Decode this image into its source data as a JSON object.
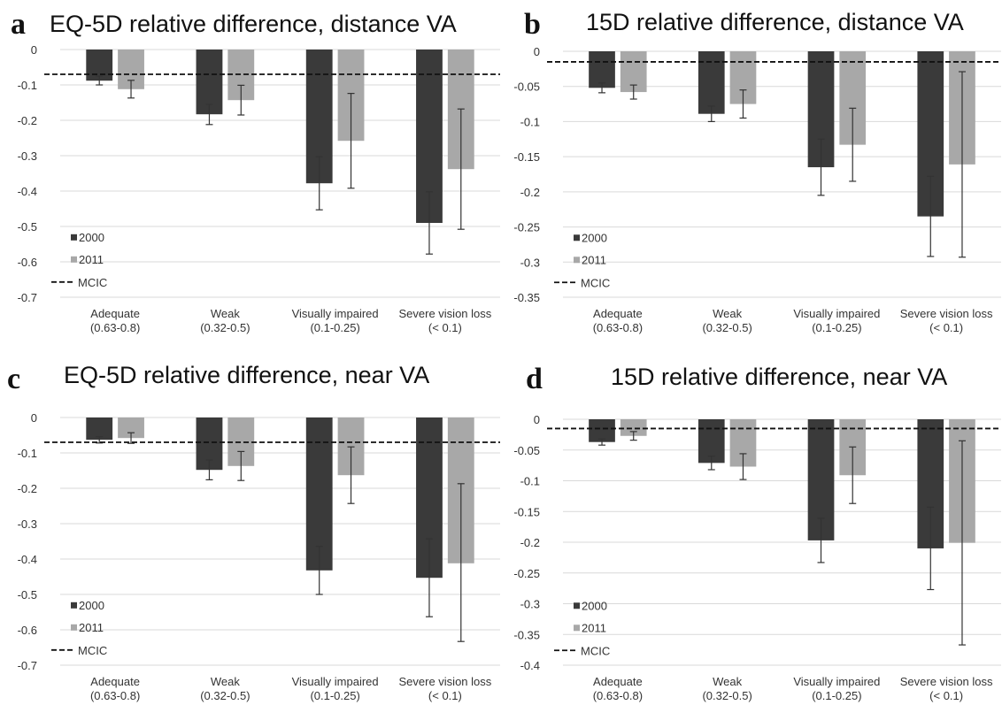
{
  "colors": {
    "2000": "#3a3a3a",
    "2011": "#a8a8a8",
    "grid": "#d9d9d9",
    "errorbar": "#333333",
    "mcic": "#111111"
  },
  "legend": {
    "entries": [
      "2000",
      "2011",
      "MCIC"
    ],
    "position": "bottom-left"
  },
  "categories": [
    {
      "name": "Adequate",
      "range": "(0.63-0.8)"
    },
    {
      "name": "Weak",
      "range": "(0.32-0.5)"
    },
    {
      "name": "Visually impaired",
      "range": "(0.1-0.25)"
    },
    {
      "name": "Severe vision loss",
      "range": "(< 0.1)"
    }
  ],
  "chart_data": [
    {
      "letter": "a",
      "title": "EQ-5D relative difference, distance VA",
      "type": "bar",
      "ylim": [
        -0.7,
        0
      ],
      "yticks": [
        "0",
        "-0.1",
        "-0.2",
        "-0.3",
        "-0.4",
        "-0.5",
        "-0.6",
        "-0.7"
      ],
      "yvals": [
        0,
        -0.1,
        -0.2,
        -0.3,
        -0.4,
        -0.5,
        -0.6,
        -0.7
      ],
      "mcic": -0.07,
      "series": [
        {
          "name": "2000",
          "values": [
            -0.088,
            -0.183,
            -0.378,
            -0.49
          ],
          "err_low": [
            -0.1,
            -0.212,
            -0.453,
            -0.578
          ],
          "err_high": [
            -0.075,
            -0.155,
            -0.303,
            -0.402
          ]
        },
        {
          "name": "2011",
          "values": [
            -0.112,
            -0.143,
            -0.258,
            -0.338
          ],
          "err_low": [
            -0.137,
            -0.185,
            -0.392,
            -0.508
          ],
          "err_high": [
            -0.087,
            -0.101,
            -0.124,
            -0.168
          ]
        }
      ]
    },
    {
      "letter": "b",
      "title": "15D relative difference, distance VA",
      "type": "bar",
      "ylim": [
        -0.35,
        0
      ],
      "yticks": [
        "0",
        "-0.05",
        "-0.1",
        "-0.15",
        "-0.2",
        "-0.25",
        "-0.3",
        "-0.35"
      ],
      "yvals": [
        0,
        -0.05,
        -0.1,
        -0.15,
        -0.2,
        -0.25,
        -0.3,
        -0.35
      ],
      "mcic": -0.015,
      "series": [
        {
          "name": "2000",
          "values": [
            -0.052,
            -0.089,
            -0.165,
            -0.235
          ],
          "err_low": [
            -0.059,
            -0.1,
            -0.205,
            -0.292
          ],
          "err_high": [
            -0.045,
            -0.078,
            -0.125,
            -0.178
          ]
        },
        {
          "name": "2011",
          "values": [
            -0.058,
            -0.075,
            -0.133,
            -0.161
          ],
          "err_low": [
            -0.068,
            -0.095,
            -0.185,
            -0.293
          ],
          "err_high": [
            -0.048,
            -0.055,
            -0.081,
            -0.029
          ]
        }
      ]
    },
    {
      "letter": "c",
      "title": "EQ-5D relative difference, near VA",
      "type": "bar",
      "ylim": [
        -0.7,
        0
      ],
      "yticks": [
        "0",
        "-0.1",
        "-0.2",
        "-0.3",
        "-0.4",
        "-0.5",
        "-0.6",
        "-0.7"
      ],
      "yvals": [
        0,
        -0.1,
        -0.2,
        -0.3,
        -0.4,
        -0.5,
        -0.6,
        -0.7
      ],
      "mcic": -0.07,
      "series": [
        {
          "name": "2000",
          "values": [
            -0.063,
            -0.148,
            -0.432,
            -0.453
          ],
          "err_low": [
            -0.072,
            -0.176,
            -0.5,
            -0.563
          ],
          "err_high": [
            -0.054,
            -0.12,
            -0.364,
            -0.343
          ]
        },
        {
          "name": "2011",
          "values": [
            -0.058,
            -0.137,
            -0.163,
            -0.412
          ],
          "err_low": [
            -0.073,
            -0.178,
            -0.243,
            -0.633
          ],
          "err_high": [
            -0.043,
            -0.096,
            -0.083,
            -0.187
          ]
        }
      ]
    },
    {
      "letter": "d",
      "title": "15D relative difference, near VA",
      "type": "bar",
      "ylim": [
        -0.4,
        0
      ],
      "yticks": [
        "0",
        "-0.05",
        "-0.1",
        "-0.15",
        "-0.2",
        "-0.25",
        "-0.3",
        "-0.35",
        "-0.4"
      ],
      "yvals": [
        0,
        -0.05,
        -0.1,
        -0.15,
        -0.2,
        -0.25,
        -0.3,
        -0.35,
        -0.4
      ],
      "mcic": -0.015,
      "series": [
        {
          "name": "2000",
          "values": [
            -0.037,
            -0.071,
            -0.197,
            -0.21
          ],
          "err_low": [
            -0.042,
            -0.082,
            -0.233,
            -0.277
          ],
          "err_high": [
            -0.032,
            -0.06,
            -0.161,
            -0.143
          ]
        },
        {
          "name": "2011",
          "values": [
            -0.027,
            -0.077,
            -0.091,
            -0.201
          ],
          "err_low": [
            -0.034,
            -0.098,
            -0.137,
            -0.367
          ],
          "err_high": [
            -0.02,
            -0.056,
            -0.045,
            -0.035
          ]
        }
      ]
    }
  ]
}
